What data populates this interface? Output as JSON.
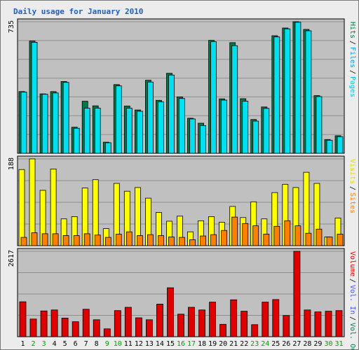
{
  "chart_data": {
    "type": "bar",
    "title": "Daily usage for January 2010",
    "categories": [
      "1",
      "2",
      "3",
      "4",
      "5",
      "6",
      "7",
      "8",
      "9",
      "10",
      "11",
      "12",
      "13",
      "14",
      "15",
      "16",
      "17",
      "18",
      "19",
      "20",
      "21",
      "22",
      "23",
      "24",
      "25",
      "26",
      "27",
      "28",
      "29",
      "30",
      "31"
    ],
    "weekend_days": [
      "2",
      "3",
      "9",
      "10",
      "16",
      "17",
      "23",
      "24",
      "30",
      "31"
    ],
    "panels": [
      {
        "name": "top",
        "max_label": "735",
        "ylim": [
          0,
          735
        ],
        "series": [
          {
            "name": "Hits",
            "color": "#007a4a",
            "values": [
              345,
              627,
              332,
              345,
              401,
              146,
              291,
              265,
              62,
              384,
              264,
              242,
              408,
              296,
              447,
              315,
              196,
              168,
              631,
              304,
              618,
              305,
              189,
              259,
              657,
              700,
              735,
              692,
              322,
              77,
              98
            ]
          },
          {
            "name": "Files",
            "color": "#00e0f0",
            "values": [
              342,
              620,
              330,
              337,
              396,
              140,
              252,
              252,
              59,
              377,
              252,
              235,
              398,
              287,
              437,
              306,
              192,
              155,
              623,
              297,
              601,
              291,
              180,
              251,
              650,
              695,
              732,
              684,
              317,
              73,
              93
            ]
          }
        ]
      },
      {
        "name": "middle",
        "max_label": "188",
        "ylim": [
          0,
          188
        ],
        "series": [
          {
            "name": "Visits",
            "color": "#ffff00",
            "values": [
              165,
              188,
              120,
              166,
              58,
              63,
              125,
              143,
              37,
              135,
              118,
              126,
              103,
              72,
              53,
              64,
              30,
              54,
              63,
              51,
              85,
              61,
              95,
              58,
              115,
              133,
              126,
              159,
              135,
              19,
              60
            ]
          },
          {
            "name": "Sites",
            "color": "#ff8000",
            "values": [
              18,
              28,
              26,
              26,
              22,
              22,
              26,
              23,
              18,
              25,
              30,
              22,
              24,
              22,
              19,
              18,
              13,
              21,
              24,
              33,
              62,
              48,
              43,
              25,
              42,
              54,
              43,
              27,
              36,
              19,
              25
            ]
          }
        ]
      },
      {
        "name": "bottom",
        "max_label": "2617",
        "ylim": [
          0,
          2617
        ],
        "series": [
          {
            "name": "Volume",
            "color": "#e00000",
            "values": [
              1070,
              540,
              790,
              820,
              570,
              460,
              840,
              520,
              240,
              800,
              900,
              580,
              520,
              1000,
              1500,
              690,
              900,
              820,
              1060,
              380,
              1130,
              780,
              370,
              1060,
              1140,
              650,
              2617,
              820,
              760,
              780,
              800
            ]
          }
        ]
      }
    ],
    "side_legend_top": [
      {
        "label": "Hits",
        "color": "#007a4a"
      },
      {
        "label": "Files",
        "color": "#00a0e0"
      },
      {
        "label": "Pages",
        "color": "#00c8e0"
      }
    ],
    "side_legend_middle": [
      {
        "label": "Visits",
        "color": "#e8d800"
      },
      {
        "label": "Sites",
        "color": "#ff8000"
      }
    ],
    "side_legend_bottom": [
      {
        "label": "Volume",
        "color": "#e00000"
      },
      {
        "label": "Vol. In",
        "color": "#4a4aff"
      },
      {
        "label": "Vol. Out",
        "color": "#007a4a"
      }
    ]
  }
}
